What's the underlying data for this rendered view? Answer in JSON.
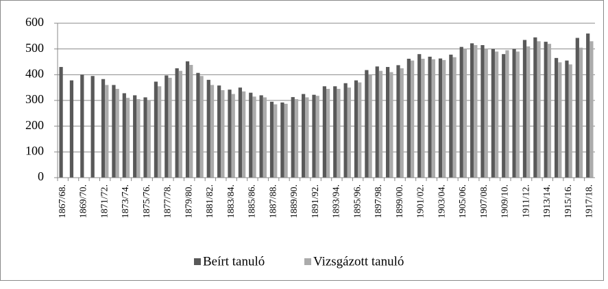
{
  "chart_data": {
    "type": "bar",
    "categories": [
      "1867/68.",
      null,
      "1869/70.",
      null,
      "1871/72.",
      null,
      "1873/74.",
      null,
      "1875/76.",
      null,
      "1877/78.",
      null,
      "1879/80.",
      null,
      "1881/82.",
      null,
      "1883/84.",
      null,
      "1885/86.",
      null,
      "1887/88.",
      null,
      "1889/90.",
      null,
      "1891/92.",
      null,
      "1893/94.",
      null,
      "1895/96.",
      null,
      "1897/98.",
      null,
      "1899/00.",
      null,
      "1901/02.",
      null,
      "1903/04.",
      null,
      "1905/06.",
      null,
      "1907/08.",
      null,
      "1909/10.",
      null,
      "1911/12.",
      null,
      "1913/14.",
      null,
      "1915/16.",
      null,
      "1917/18."
    ],
    "series": [
      {
        "name": "Beírt tanuló",
        "color": "#595959",
        "values": [
          430,
          378,
          400,
          395,
          383,
          360,
          328,
          320,
          312,
          373,
          397,
          425,
          452,
          407,
          380,
          358,
          342,
          350,
          330,
          320,
          295,
          292,
          313,
          325,
          322,
          355,
          355,
          367,
          378,
          418,
          432,
          430,
          437,
          462,
          480,
          470,
          463,
          478,
          508,
          522,
          515,
          500,
          480,
          500,
          535,
          545,
          528,
          465,
          455,
          543,
          560
        ]
      },
      {
        "name": "Vizsgázott tanuló",
        "color": "#ababab",
        "values": [
          null,
          null,
          null,
          null,
          360,
          345,
          310,
          305,
          300,
          355,
          388,
          415,
          438,
          395,
          360,
          340,
          325,
          335,
          315,
          312,
          285,
          287,
          305,
          312,
          318,
          345,
          345,
          350,
          370,
          400,
          415,
          410,
          425,
          455,
          462,
          460,
          457,
          468,
          500,
          515,
          500,
          490,
          495,
          490,
          510,
          530,
          520,
          448,
          440,
          505,
          530
        ]
      }
    ],
    "ylim": [
      0,
      600
    ],
    "yticks": [
      0,
      100,
      200,
      300,
      400,
      500,
      600
    ],
    "grid": true,
    "legend": "bottom"
  }
}
